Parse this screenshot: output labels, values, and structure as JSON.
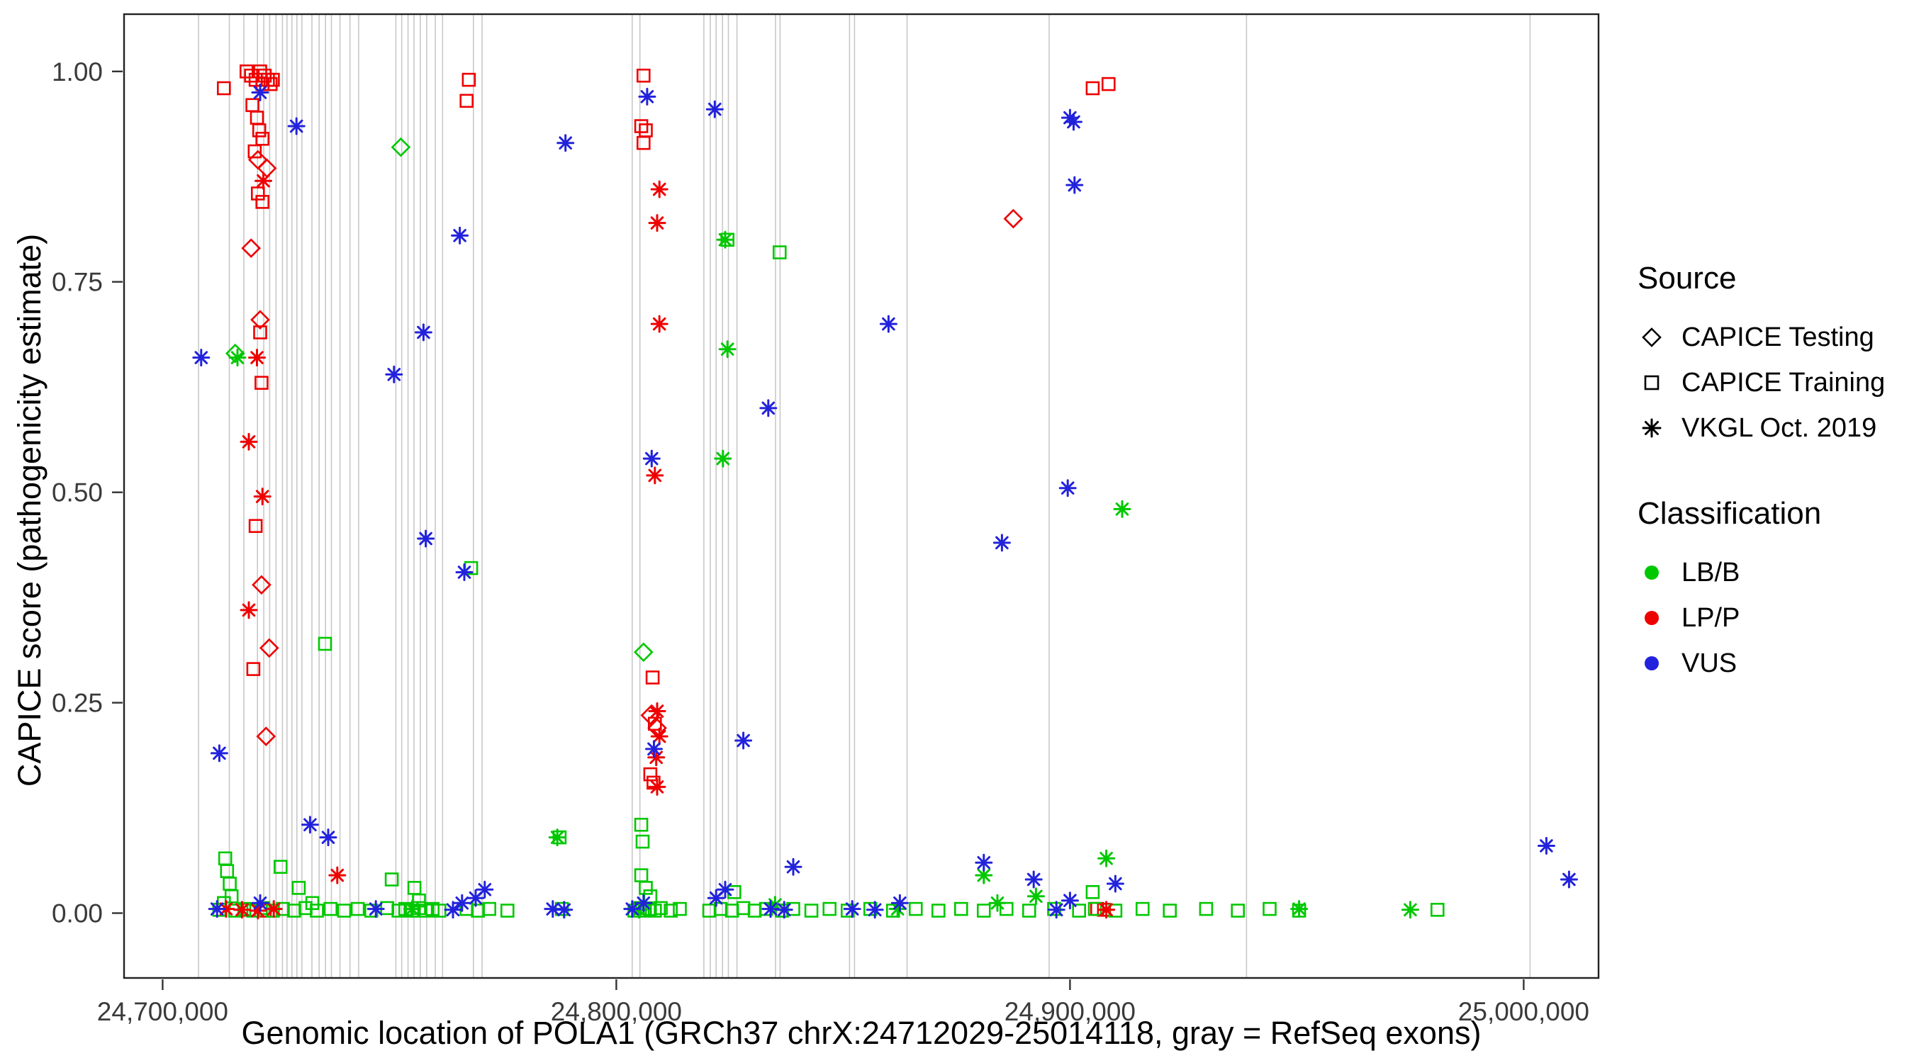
{
  "chart_data": {
    "type": "scatter",
    "title": "",
    "xlabel": "Genomic location of POLA1 (GRCh37 chrX:24712029-25014118, gray = RefSeq exons)",
    "ylabel": "CAPICE score (pathogenicity estimate)",
    "xlim": [
      24691500,
      25016500
    ],
    "ylim": [
      -0.077,
      1.068
    ],
    "grid": "off",
    "legend_position": "right",
    "x_ticks": [
      {
        "value": 24700000,
        "label": "24,700,000"
      },
      {
        "value": 24800000,
        "label": "24,800,000"
      },
      {
        "value": 24900000,
        "label": "24,900,000"
      },
      {
        "value": 25000000,
        "label": "25,000,000"
      }
    ],
    "y_ticks": [
      {
        "value": 0.0,
        "label": "0.00"
      },
      {
        "value": 0.25,
        "label": "0.25"
      },
      {
        "value": 0.5,
        "label": "0.50"
      },
      {
        "value": 0.75,
        "label": "0.75"
      },
      {
        "value": 1.0,
        "label": "1.00"
      }
    ],
    "exon_color": "#c8c8c8",
    "exon_positions": [
      24707900,
      24714700,
      24717900,
      24720900,
      24722300,
      24723600,
      24725000,
      24726400,
      24727400,
      24728500,
      24729600,
      24730700,
      24732900,
      24734500,
      24735900,
      24737200,
      24739100,
      24741300,
      24743200,
      24751400,
      24752700,
      24754100,
      24755400,
      24756800,
      24758200,
      24760100,
      24761700,
      24768500,
      24770400,
      24803500,
      24805200,
      24819300,
      24820700,
      24822000,
      24823400,
      24824700,
      24826600,
      24835100,
      24836100,
      24851400,
      24852500,
      24864100,
      24895400,
      24938900,
      25001400
    ],
    "colors": {
      "lb": "#00c800",
      "lp": "#ee0000",
      "vus": "#2222dd"
    },
    "shapes": {
      "testing": "diamond",
      "training": "square",
      "vkgl": "asterisk"
    },
    "series": [
      {
        "name": "CAPICE Testing / LP-P",
        "source": "testing",
        "cls": "lp",
        "points": [
          [
            24721000,
            0.895
          ],
          [
            24723000,
            0.885
          ],
          [
            24719500,
            0.79
          ],
          [
            24721500,
            0.705
          ],
          [
            24721800,
            0.39
          ],
          [
            24723500,
            0.315
          ],
          [
            24722800,
            0.21
          ],
          [
            24807500,
            0.235
          ],
          [
            24809000,
            0.22
          ],
          [
            24887500,
            0.825
          ]
        ]
      },
      {
        "name": "CAPICE Testing / LB-B",
        "source": "testing",
        "cls": "lb",
        "points": [
          [
            24716000,
            0.665
          ],
          [
            24752500,
            0.91
          ],
          [
            24806000,
            0.31
          ]
        ]
      },
      {
        "name": "CAPICE Training / LP-P",
        "source": "training",
        "cls": "lp",
        "points": [
          [
            24713500,
            0.98
          ],
          [
            24718500,
            1.0
          ],
          [
            24719500,
            0.995
          ],
          [
            24720500,
            0.99
          ],
          [
            24721500,
            1.0
          ],
          [
            24722000,
            0.985
          ],
          [
            24722500,
            0.995
          ],
          [
            24723200,
            0.99
          ],
          [
            24723800,
            0.985
          ],
          [
            24724300,
            0.99
          ],
          [
            24719800,
            0.96
          ],
          [
            24720800,
            0.945
          ],
          [
            24721300,
            0.93
          ],
          [
            24722000,
            0.92
          ],
          [
            24720300,
            0.905
          ],
          [
            24721000,
            0.855
          ],
          [
            24722000,
            0.845
          ],
          [
            24721500,
            0.69
          ],
          [
            24721800,
            0.63
          ],
          [
            24720500,
            0.46
          ],
          [
            24720000,
            0.29
          ],
          [
            24767500,
            0.99
          ],
          [
            24767000,
            0.965
          ],
          [
            24806000,
            0.995
          ],
          [
            24805500,
            0.935
          ],
          [
            24806500,
            0.93
          ],
          [
            24806000,
            0.915
          ],
          [
            24808000,
            0.28
          ],
          [
            24808500,
            0.225
          ],
          [
            24807500,
            0.165
          ],
          [
            24808200,
            0.155
          ],
          [
            24905000,
            0.98
          ],
          [
            24908500,
            0.985
          ],
          [
            24906000,
            0.005
          ],
          [
            24907500,
            0.004
          ],
          [
            24719000,
            0.004
          ],
          [
            24722500,
            0.003
          ]
        ]
      },
      {
        "name": "CAPICE Training / LB-B",
        "source": "training",
        "cls": "lb",
        "points": [
          [
            24735800,
            0.32
          ],
          [
            24768000,
            0.41
          ],
          [
            24824500,
            0.8
          ],
          [
            24836000,
            0.785
          ],
          [
            24805500,
            0.105
          ],
          [
            24805800,
            0.085
          ],
          [
            24787500,
            0.09
          ],
          [
            24713800,
            0.065
          ],
          [
            24714200,
            0.05
          ],
          [
            24714800,
            0.035
          ],
          [
            24715200,
            0.02
          ],
          [
            24713500,
            0.012
          ],
          [
            24726000,
            0.055
          ],
          [
            24730000,
            0.03
          ],
          [
            24733000,
            0.012
          ],
          [
            24750500,
            0.04
          ],
          [
            24755500,
            0.03
          ],
          [
            24756500,
            0.015
          ],
          [
            24805500,
            0.045
          ],
          [
            24806500,
            0.03
          ],
          [
            24807500,
            0.02
          ],
          [
            24826000,
            0.025
          ],
          [
            24905000,
            0.025
          ],
          [
            24712500,
            0.004
          ],
          [
            24716000,
            0.003
          ],
          [
            24718000,
            0.005
          ],
          [
            24720000,
            0.003
          ],
          [
            24722200,
            0.006
          ],
          [
            24724300,
            0.003
          ],
          [
            24726500,
            0.005
          ],
          [
            24729000,
            0.003
          ],
          [
            24731500,
            0.006
          ],
          [
            24734000,
            0.003
          ],
          [
            24737000,
            0.005
          ],
          [
            24740000,
            0.003
          ],
          [
            24743000,
            0.005
          ],
          [
            24746000,
            0.003
          ],
          [
            24749500,
            0.006
          ],
          [
            24752000,
            0.003
          ],
          [
            24753500,
            0.005
          ],
          [
            24755000,
            0.003
          ],
          [
            24756500,
            0.006
          ],
          [
            24758000,
            0.003
          ],
          [
            24759500,
            0.005
          ],
          [
            24761000,
            0.003
          ],
          [
            24767000,
            0.005
          ],
          [
            24769500,
            0.003
          ],
          [
            24772000,
            0.005
          ],
          [
            24776000,
            0.003
          ],
          [
            24788000,
            0.005
          ],
          [
            24804000,
            0.003
          ],
          [
            24805200,
            0.006
          ],
          [
            24806300,
            0.003
          ],
          [
            24807400,
            0.005
          ],
          [
            24808500,
            0.003
          ],
          [
            24809800,
            0.006
          ],
          [
            24812000,
            0.003
          ],
          [
            24814000,
            0.005
          ],
          [
            24820500,
            0.003
          ],
          [
            24823000,
            0.005
          ],
          [
            24825500,
            0.003
          ],
          [
            24828000,
            0.006
          ],
          [
            24830500,
            0.003
          ],
          [
            24833000,
            0.005
          ],
          [
            24836500,
            0.003
          ],
          [
            24839000,
            0.005
          ],
          [
            24843000,
            0.003
          ],
          [
            24847000,
            0.005
          ],
          [
            24851000,
            0.003
          ],
          [
            24856000,
            0.005
          ],
          [
            24861000,
            0.003
          ],
          [
            24866000,
            0.005
          ],
          [
            24871000,
            0.003
          ],
          [
            24876000,
            0.005
          ],
          [
            24881000,
            0.003
          ],
          [
            24886000,
            0.005
          ],
          [
            24891000,
            0.003
          ],
          [
            24896500,
            0.005
          ],
          [
            24902000,
            0.003
          ],
          [
            24905500,
            0.005
          ],
          [
            24910000,
            0.003
          ],
          [
            24916000,
            0.005
          ],
          [
            24922000,
            0.003
          ],
          [
            24930000,
            0.005
          ],
          [
            24937000,
            0.003
          ],
          [
            24944000,
            0.005
          ],
          [
            24950500,
            0.003
          ],
          [
            24981000,
            0.004
          ]
        ]
      },
      {
        "name": "VKGL Oct. 2019 / LP-P",
        "source": "vkgl",
        "cls": "lp",
        "points": [
          [
            24722200,
            0.87
          ],
          [
            24720800,
            0.66
          ],
          [
            24719000,
            0.56
          ],
          [
            24722000,
            0.495
          ],
          [
            24719000,
            0.36
          ],
          [
            24809500,
            0.86
          ],
          [
            24809000,
            0.82
          ],
          [
            24809500,
            0.7
          ],
          [
            24808500,
            0.52
          ],
          [
            24809000,
            0.24
          ],
          [
            24809500,
            0.21
          ],
          [
            24808800,
            0.185
          ],
          [
            24809000,
            0.15
          ],
          [
            24738500,
            0.045
          ],
          [
            24714000,
            0.005
          ],
          [
            24717500,
            0.004
          ],
          [
            24721000,
            0.003
          ],
          [
            24724500,
            0.005
          ],
          [
            24908000,
            0.004
          ]
        ]
      },
      {
        "name": "VKGL Oct. 2019 / LB-B",
        "source": "vkgl",
        "cls": "lb",
        "points": [
          [
            24716500,
            0.66
          ],
          [
            24824000,
            0.8
          ],
          [
            24824500,
            0.67
          ],
          [
            24823500,
            0.54
          ],
          [
            24911500,
            0.48
          ],
          [
            24908000,
            0.065
          ],
          [
            24881000,
            0.045
          ],
          [
            24892500,
            0.02
          ],
          [
            24787000,
            0.09
          ],
          [
            24755000,
            0.005
          ],
          [
            24805000,
            0.004
          ],
          [
            24835000,
            0.01
          ],
          [
            24862000,
            0.005
          ],
          [
            24884000,
            0.012
          ],
          [
            24950500,
            0.005
          ],
          [
            24975000,
            0.004
          ]
        ]
      },
      {
        "name": "VKGL Oct. 2019 / VUS",
        "source": "vkgl",
        "cls": "vus",
        "points": [
          [
            24708500,
            0.66
          ],
          [
            24721500,
            0.975
          ],
          [
            24729500,
            0.935
          ],
          [
            24712500,
            0.19
          ],
          [
            24732500,
            0.105
          ],
          [
            24736500,
            0.09
          ],
          [
            24751000,
            0.64
          ],
          [
            24757500,
            0.69
          ],
          [
            24758000,
            0.445
          ],
          [
            24765500,
            0.805
          ],
          [
            24766500,
            0.405
          ],
          [
            24788800,
            0.915
          ],
          [
            24806800,
            0.97
          ],
          [
            24807800,
            0.54
          ],
          [
            24808300,
            0.195
          ],
          [
            24821700,
            0.955
          ],
          [
            24833500,
            0.6
          ],
          [
            24828000,
            0.205
          ],
          [
            24839000,
            0.055
          ],
          [
            24860000,
            0.7
          ],
          [
            24885000,
            0.44
          ],
          [
            24900000,
            0.945
          ],
          [
            24900800,
            0.94
          ],
          [
            24901000,
            0.865
          ],
          [
            24899500,
            0.505
          ],
          [
            24881000,
            0.06
          ],
          [
            24892000,
            0.04
          ],
          [
            24910000,
            0.035
          ],
          [
            25005000,
            0.08
          ],
          [
            25010000,
            0.04
          ],
          [
            24712000,
            0.005
          ],
          [
            24721500,
            0.012
          ],
          [
            24747000,
            0.005
          ],
          [
            24764000,
            0.004
          ],
          [
            24766000,
            0.012
          ],
          [
            24769000,
            0.018
          ],
          [
            24771000,
            0.028
          ],
          [
            24786000,
            0.005
          ],
          [
            24788500,
            0.004
          ],
          [
            24803500,
            0.005
          ],
          [
            24806000,
            0.012
          ],
          [
            24822000,
            0.018
          ],
          [
            24824000,
            0.028
          ],
          [
            24834000,
            0.005
          ],
          [
            24837000,
            0.004
          ],
          [
            24852000,
            0.005
          ],
          [
            24857000,
            0.004
          ],
          [
            24862500,
            0.012
          ],
          [
            24897000,
            0.004
          ],
          [
            24900000,
            0.015
          ]
        ]
      }
    ]
  },
  "legend": {
    "source": {
      "title": "Source",
      "items": [
        {
          "label": "CAPICE Testing",
          "shape": "diamond"
        },
        {
          "label": "CAPICE Training",
          "shape": "square"
        },
        {
          "label": "VKGL Oct. 2019",
          "shape": "asterisk"
        }
      ]
    },
    "classification": {
      "title": "Classification",
      "items": [
        {
          "label": "LB/B",
          "color_key": "lb"
        },
        {
          "label": "LP/P",
          "color_key": "lp"
        },
        {
          "label": "VUS",
          "color_key": "vus"
        }
      ]
    }
  }
}
